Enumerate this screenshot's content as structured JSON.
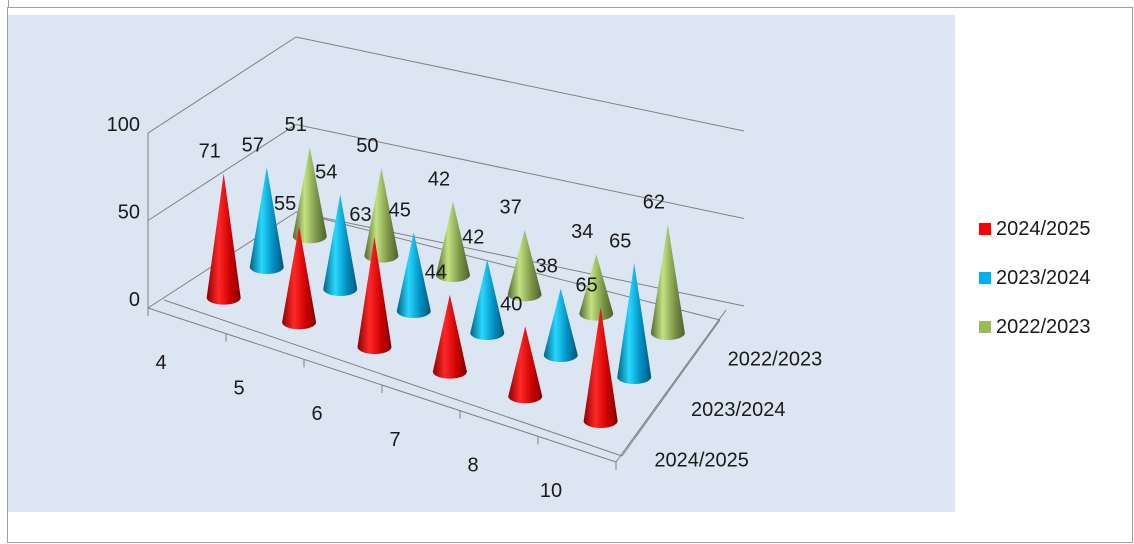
{
  "chart_data": {
    "type": "3d-cone",
    "categories": [
      "4",
      "5",
      "6",
      "7",
      "8",
      "10"
    ],
    "depth_labels": [
      "2022/2023",
      "2023/2024",
      "2024/2025"
    ],
    "z_ticks": [
      "0",
      "50",
      "100"
    ],
    "zlim": [
      0,
      100
    ],
    "series": [
      {
        "name": "2024/2025",
        "color": "#ff0000",
        "values": [
          71,
          55,
          63,
          44,
          40,
          65
        ]
      },
      {
        "name": "2023/2024",
        "color": "#00b0f0",
        "values": [
          57,
          54,
          45,
          42,
          38,
          65
        ]
      },
      {
        "name": "2022/2023",
        "color": "#9bbb59",
        "values": [
          51,
          50,
          42,
          37,
          34,
          62
        ]
      }
    ],
    "legend_position": "right",
    "plot_background": "#dce6f2"
  }
}
